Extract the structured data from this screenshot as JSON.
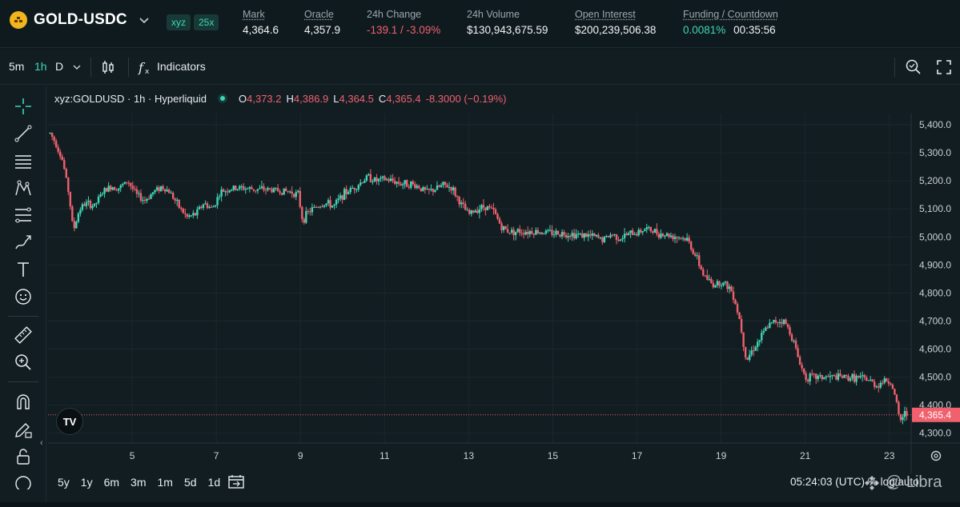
{
  "header": {
    "pair": "GOLD-USDC",
    "tag_dex": "xyz",
    "tag_leverage": "25x",
    "stats": [
      {
        "label": "Mark",
        "value": "4,364.6",
        "underline": true,
        "color": "#f2f5f6"
      },
      {
        "label": "Oracle",
        "value": "4,357.9",
        "underline": true,
        "color": "#f2f5f6"
      },
      {
        "label": "24h Change",
        "value": "-139.1 / -3.09%",
        "underline": false,
        "color": "#f0616d"
      },
      {
        "label": "24h Volume",
        "value": "$130,943,675.59",
        "underline": false,
        "color": "#f2f5f6"
      },
      {
        "label": "Open Interest",
        "value": "$200,239,506.38",
        "underline": true,
        "color": "#f2f5f6"
      },
      {
        "label": "Funding / Countdown",
        "value": "0.0081%",
        "value2": "00:35:56",
        "underline": true,
        "color": "#3ed6b5"
      }
    ]
  },
  "toolbar": {
    "intervals": [
      "5m",
      "1h",
      "D"
    ],
    "active_interval": "1h",
    "indicators_label": "Indicators"
  },
  "legend": {
    "symbol": "xyz:GOLDUSD · 1h · Hyperliquid",
    "o_label": "O",
    "o": "4,373.2",
    "h_label": "H",
    "h": "4,386.9",
    "l_label": "L",
    "l": "4,364.5",
    "c_label": "C",
    "c": "4,365.4",
    "change": "-8.3000 (−0.19%)"
  },
  "chart_data": {
    "type": "candlestick",
    "interval": "1h",
    "x_tick_labels": [
      "5",
      "7",
      "9",
      "11",
      "13",
      "15",
      "17",
      "19",
      "21",
      "23"
    ],
    "y_tick_labels": [
      "5,400.0",
      "5,300.0",
      "5,200.0",
      "5,100.0",
      "5,000.0",
      "4,900.0",
      "4,800.0",
      "4,700.0",
      "4,600.0",
      "4,500.0",
      "4,400.0",
      "4,300.0"
    ],
    "ylim": [
      4265,
      5440
    ],
    "x_range_days": [
      3.0,
      23.5
    ],
    "last_price": 4365.4,
    "last_price_label": "4,365.4",
    "up_color": "#3ed6b5",
    "down_color": "#f0616d",
    "trend": [
      [
        3.05,
        5370
      ],
      [
        3.2,
        5330
      ],
      [
        3.35,
        5270
      ],
      [
        3.5,
        5150
      ],
      [
        3.6,
        5020
      ],
      [
        3.75,
        5100
      ],
      [
        3.9,
        5120
      ],
      [
        4.1,
        5110
      ],
      [
        4.3,
        5160
      ],
      [
        4.5,
        5180
      ],
      [
        4.7,
        5175
      ],
      [
        4.9,
        5200
      ],
      [
        5.1,
        5150
      ],
      [
        5.3,
        5130
      ],
      [
        5.5,
        5160
      ],
      [
        5.7,
        5180
      ],
      [
        5.9,
        5160
      ],
      [
        6.1,
        5110
      ],
      [
        6.3,
        5070
      ],
      [
        6.5,
        5080
      ],
      [
        6.7,
        5120
      ],
      [
        6.9,
        5100
      ],
      [
        7.1,
        5160
      ],
      [
        7.3,
        5170
      ],
      [
        7.6,
        5175
      ],
      [
        7.9,
        5170
      ],
      [
        8.2,
        5170
      ],
      [
        8.5,
        5165
      ],
      [
        8.8,
        5160
      ],
      [
        8.95,
        5150
      ],
      [
        9.05,
        5060
      ],
      [
        9.2,
        5090
      ],
      [
        9.4,
        5110
      ],
      [
        9.6,
        5120
      ],
      [
        9.8,
        5110
      ],
      [
        10.0,
        5150
      ],
      [
        10.2,
        5170
      ],
      [
        10.4,
        5190
      ],
      [
        10.6,
        5215
      ],
      [
        10.8,
        5200
      ],
      [
        11.0,
        5205
      ],
      [
        11.2,
        5200
      ],
      [
        11.4,
        5190
      ],
      [
        11.6,
        5190
      ],
      [
        11.8,
        5180
      ],
      [
        12.0,
        5160
      ],
      [
        12.2,
        5170
      ],
      [
        12.4,
        5185
      ],
      [
        12.6,
        5175
      ],
      [
        12.8,
        5120
      ],
      [
        13.0,
        5080
      ],
      [
        13.2,
        5100
      ],
      [
        13.4,
        5110
      ],
      [
        13.6,
        5090
      ],
      [
        13.8,
        5030
      ],
      [
        14.0,
        5020
      ],
      [
        14.5,
        5020
      ],
      [
        15.0,
        5015
      ],
      [
        15.5,
        5010
      ],
      [
        15.8,
        5005
      ],
      [
        16.0,
        5000
      ],
      [
        16.2,
        4990
      ],
      [
        16.4,
        5010
      ],
      [
        16.6,
        4995
      ],
      [
        16.8,
        5010
      ],
      [
        17.0,
        5015
      ],
      [
        17.2,
        5030
      ],
      [
        17.4,
        5020
      ],
      [
        17.6,
        5010
      ],
      [
        17.8,
        5005
      ],
      [
        18.0,
        5000
      ],
      [
        18.2,
        4990
      ],
      [
        18.4,
        4930
      ],
      [
        18.6,
        4860
      ],
      [
        18.8,
        4830
      ],
      [
        19.0,
        4840
      ],
      [
        19.2,
        4820
      ],
      [
        19.3,
        4790
      ],
      [
        19.45,
        4700
      ],
      [
        19.6,
        4560
      ],
      [
        19.75,
        4600
      ],
      [
        19.9,
        4630
      ],
      [
        20.1,
        4680
      ],
      [
        20.3,
        4700
      ],
      [
        20.5,
        4700
      ],
      [
        20.7,
        4640
      ],
      [
        20.85,
        4560
      ],
      [
        21.0,
        4500
      ],
      [
        21.4,
        4500
      ],
      [
        21.8,
        4500
      ],
      [
        22.2,
        4498
      ],
      [
        22.5,
        4490
      ],
      [
        22.7,
        4470
      ],
      [
        22.9,
        4490
      ],
      [
        23.05,
        4480
      ],
      [
        23.15,
        4420
      ],
      [
        23.25,
        4340
      ],
      [
        23.35,
        4370
      ],
      [
        23.45,
        4365
      ]
    ]
  },
  "ranges": [
    "5y",
    "1y",
    "6m",
    "3m",
    "1m",
    "5d",
    "1d"
  ],
  "clock": "05:24:03 (UTC)",
  "clock_suffix": "% log auto",
  "watermark": "@ Libra",
  "tv_logo": "TV"
}
